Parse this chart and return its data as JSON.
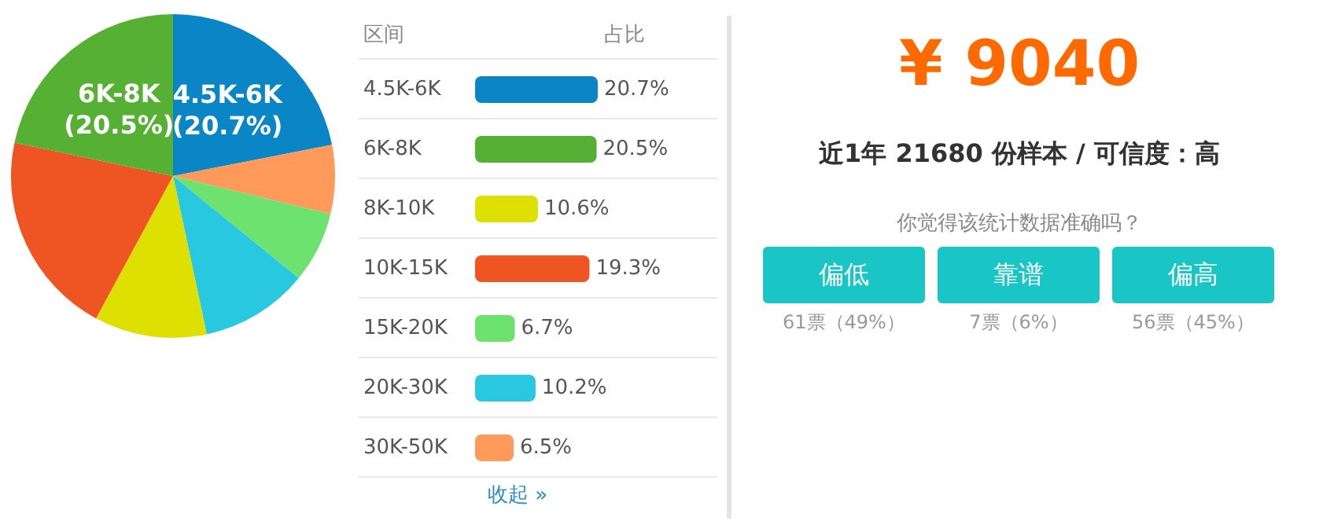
{
  "chart_data": [
    {
      "type": "pie",
      "categories": [
        "4.5K-6K",
        null,
        null,
        null,
        null,
        null,
        "6K-8K"
      ],
      "values": [
        20.7,
        6.5,
        6.7,
        10.2,
        10.6,
        19.3,
        20.5
      ],
      "colors": [
        "#0a86c6",
        "#ff9a5a",
        "#6ee26f",
        "#27c8e0",
        "#dde000",
        "#ee5522",
        "#55b034"
      ],
      "value_labels": [
        "(20.7%)",
        null,
        null,
        null,
        null,
        null,
        "(20.5%)"
      ]
    },
    {
      "type": "bar",
      "orientation": "horizontal",
      "categories": [
        "4.5K-6K",
        "6K-8K",
        "8K-10K",
        "10K-15K",
        "15K-20K",
        "20K-30K",
        "30K-50K"
      ],
      "values": [
        20.7,
        20.5,
        10.6,
        19.3,
        6.7,
        10.2,
        6.5
      ],
      "colors": [
        "#0a86c6",
        "#55b034",
        "#dde000",
        "#ee5522",
        "#6ee26f",
        "#27c8e0",
        "#ff9a5a"
      ],
      "value_labels": [
        "20.7%",
        "20.5%",
        "10.6%",
        "19.3%",
        "6.7%",
        "10.2%",
        "6.5%"
      ],
      "annotations": [
        "区间",
        "占比",
        "收起 »"
      ]
    },
    {
      "type": "other",
      "title": "¥ 9040",
      "subtitle": "近1年 21680 份样本 / 可信度：高",
      "annotations": [
        "你觉得该统计数据准确吗？",
        "偏低",
        "靠谱",
        "偏高",
        "61票（49%）",
        "7票（6%）",
        "56票（45%）"
      ]
    }
  ]
}
